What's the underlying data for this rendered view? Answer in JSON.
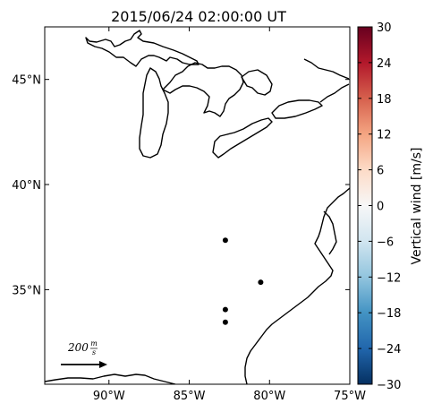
{
  "title": "2015/06/24 02:00:00 UT",
  "map": {
    "lon_range": [
      -94.0,
      -75.0
    ],
    "lat_range": [
      30.5,
      47.5
    ],
    "x_ticks": [
      {
        "lon": -90,
        "label": "90°W"
      },
      {
        "lon": -85,
        "label": "85°W"
      },
      {
        "lon": -80,
        "label": "80°W"
      },
      {
        "lon": -75,
        "label": "75°W"
      }
    ],
    "y_ticks": [
      {
        "lat": 45,
        "label": "45°N"
      },
      {
        "lat": 40,
        "label": "40°N"
      },
      {
        "lat": 35,
        "label": "35°N"
      }
    ],
    "coastline_color": "#000000"
  },
  "stations": [
    {
      "lon": -82.75,
      "lat": 37.35
    },
    {
      "lon": -80.55,
      "lat": 35.35
    },
    {
      "lon": -82.75,
      "lat": 34.05
    },
    {
      "lon": -82.75,
      "lat": 33.45
    }
  ],
  "reference_arrow": {
    "label_value": "200",
    "unit_numerator": "m",
    "unit_denominator": "s"
  },
  "colorbar": {
    "label": "Vertical wind [m/s]",
    "min": -30,
    "max": 30,
    "ticks": [
      "30",
      "24",
      "18",
      "12",
      "6",
      "0",
      "−6",
      "−12",
      "−18",
      "−24",
      "−30"
    ],
    "colormap": [
      "#053061",
      "#2166ac",
      "#4393c3",
      "#92c5de",
      "#d1e5f0",
      "#f7f7f7",
      "#fddbc7",
      "#f4a582",
      "#d6604d",
      "#b2182b",
      "#67001f"
    ]
  }
}
